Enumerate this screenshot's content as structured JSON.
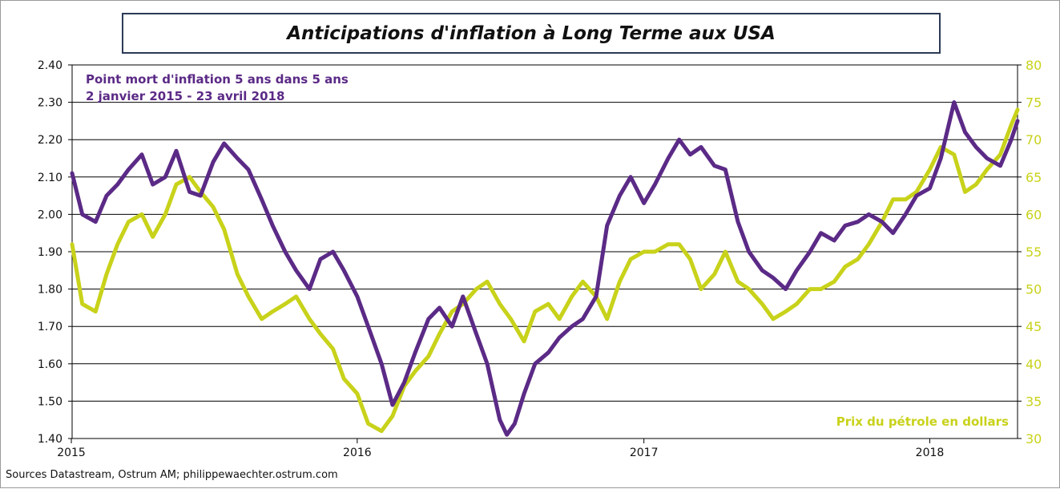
{
  "chart_data": {
    "type": "line",
    "title": "Anticipations d'inflation à Long Terme aux USA",
    "source": "Sources Datastream, Ostrum AM; philippewaechter.ostrum.com",
    "x_tick_labels": [
      "2015",
      "2016",
      "2017",
      "2018"
    ],
    "x_ticks": [
      "2015-01-01",
      "2016-01-01",
      "2017-01-01",
      "2018-01-01"
    ],
    "xlim": [
      "2015-01-02",
      "2018-04-23"
    ],
    "y_left_ticks": [
      "1.40",
      "1.50",
      "1.60",
      "1.70",
      "1.80",
      "1.90",
      "2.00",
      "2.10",
      "2.20",
      "2.30",
      "2.40"
    ],
    "y_left_lim": [
      1.4,
      2.4
    ],
    "y_right_ticks": [
      "30",
      "35",
      "40",
      "45",
      "50",
      "55",
      "60",
      "65",
      "70",
      "75",
      "80"
    ],
    "y_right_lim": [
      30,
      80
    ],
    "grid": true,
    "annotations": {
      "purple_line1": "Point mort d'inflation 5 ans dans 5 ans",
      "purple_line2": "2 janvier 2015 - 23 avril 2018",
      "yellow_label": "Prix du pétrole en dollars"
    },
    "colors": {
      "purple": "#5b2a86",
      "yellow": "#c8d21a",
      "grid": "#000000"
    },
    "series": [
      {
        "axis": "left",
        "color": "#5b2a86",
        "points": [
          [
            "2015-01-02",
            2.11
          ],
          [
            "2015-01-15",
            2.0
          ],
          [
            "2015-02-01",
            1.98
          ],
          [
            "2015-02-15",
            2.05
          ],
          [
            "2015-03-01",
            2.08
          ],
          [
            "2015-03-15",
            2.12
          ],
          [
            "2015-04-01",
            2.16
          ],
          [
            "2015-04-15",
            2.08
          ],
          [
            "2015-05-01",
            2.1
          ],
          [
            "2015-05-15",
            2.17
          ],
          [
            "2015-06-01",
            2.06
          ],
          [
            "2015-06-15",
            2.05
          ],
          [
            "2015-07-01",
            2.14
          ],
          [
            "2015-07-15",
            2.19
          ],
          [
            "2015-08-01",
            2.15
          ],
          [
            "2015-08-15",
            2.12
          ],
          [
            "2015-09-01",
            2.04
          ],
          [
            "2015-09-15",
            1.97
          ],
          [
            "2015-10-01",
            1.9
          ],
          [
            "2015-10-15",
            1.85
          ],
          [
            "2015-11-01",
            1.8
          ],
          [
            "2015-11-15",
            1.88
          ],
          [
            "2015-12-01",
            1.9
          ],
          [
            "2015-12-15",
            1.85
          ],
          [
            "2016-01-01",
            1.78
          ],
          [
            "2016-01-15",
            1.7
          ],
          [
            "2016-02-01",
            1.6
          ],
          [
            "2016-02-15",
            1.49
          ],
          [
            "2016-03-01",
            1.55
          ],
          [
            "2016-03-15",
            1.63
          ],
          [
            "2016-04-01",
            1.72
          ],
          [
            "2016-04-15",
            1.75
          ],
          [
            "2016-05-01",
            1.7
          ],
          [
            "2016-05-15",
            1.78
          ],
          [
            "2016-06-01",
            1.68
          ],
          [
            "2016-06-15",
            1.6
          ],
          [
            "2016-07-01",
            1.45
          ],
          [
            "2016-07-10",
            1.41
          ],
          [
            "2016-07-20",
            1.44
          ],
          [
            "2016-08-01",
            1.52
          ],
          [
            "2016-08-15",
            1.6
          ],
          [
            "2016-09-01",
            1.63
          ],
          [
            "2016-09-15",
            1.67
          ],
          [
            "2016-10-01",
            1.7
          ],
          [
            "2016-10-15",
            1.72
          ],
          [
            "2016-11-01",
            1.78
          ],
          [
            "2016-11-15",
            1.97
          ],
          [
            "2016-12-01",
            2.05
          ],
          [
            "2016-12-15",
            2.1
          ],
          [
            "2017-01-01",
            2.03
          ],
          [
            "2017-01-15",
            2.08
          ],
          [
            "2017-02-01",
            2.15
          ],
          [
            "2017-02-15",
            2.2
          ],
          [
            "2017-03-01",
            2.16
          ],
          [
            "2017-03-15",
            2.18
          ],
          [
            "2017-04-01",
            2.13
          ],
          [
            "2017-04-15",
            2.12
          ],
          [
            "2017-05-01",
            1.98
          ],
          [
            "2017-05-15",
            1.9
          ],
          [
            "2017-06-01",
            1.85
          ],
          [
            "2017-06-15",
            1.83
          ],
          [
            "2017-07-01",
            1.8
          ],
          [
            "2017-07-15",
            1.85
          ],
          [
            "2017-08-01",
            1.9
          ],
          [
            "2017-08-15",
            1.95
          ],
          [
            "2017-09-01",
            1.93
          ],
          [
            "2017-09-15",
            1.97
          ],
          [
            "2017-10-01",
            1.98
          ],
          [
            "2017-10-15",
            2.0
          ],
          [
            "2017-11-01",
            1.98
          ],
          [
            "2017-11-15",
            1.95
          ],
          [
            "2017-12-01",
            2.0
          ],
          [
            "2017-12-15",
            2.05
          ],
          [
            "2018-01-01",
            2.07
          ],
          [
            "2018-01-15",
            2.15
          ],
          [
            "2018-02-01",
            2.3
          ],
          [
            "2018-02-15",
            2.22
          ],
          [
            "2018-03-01",
            2.18
          ],
          [
            "2018-03-15",
            2.15
          ],
          [
            "2018-04-01",
            2.13
          ],
          [
            "2018-04-15",
            2.2
          ],
          [
            "2018-04-23",
            2.25
          ]
        ]
      },
      {
        "axis": "right",
        "color": "#c8d21a",
        "points": [
          [
            "2015-01-02",
            56
          ],
          [
            "2015-01-15",
            48
          ],
          [
            "2015-02-01",
            47
          ],
          [
            "2015-02-15",
            52
          ],
          [
            "2015-03-01",
            56
          ],
          [
            "2015-03-15",
            59
          ],
          [
            "2015-04-01",
            60
          ],
          [
            "2015-04-15",
            57
          ],
          [
            "2015-05-01",
            60
          ],
          [
            "2015-05-15",
            64
          ],
          [
            "2015-06-01",
            65
          ],
          [
            "2015-06-15",
            63
          ],
          [
            "2015-07-01",
            61
          ],
          [
            "2015-07-15",
            58
          ],
          [
            "2015-08-01",
            52
          ],
          [
            "2015-08-15",
            49
          ],
          [
            "2015-09-01",
            46
          ],
          [
            "2015-09-15",
            47
          ],
          [
            "2015-10-01",
            48
          ],
          [
            "2015-10-15",
            49
          ],
          [
            "2015-11-01",
            46
          ],
          [
            "2015-11-15",
            44
          ],
          [
            "2015-12-01",
            42
          ],
          [
            "2015-12-15",
            38
          ],
          [
            "2016-01-01",
            36
          ],
          [
            "2016-01-15",
            32
          ],
          [
            "2016-02-01",
            31
          ],
          [
            "2016-02-15",
            33
          ],
          [
            "2016-03-01",
            37
          ],
          [
            "2016-03-15",
            39
          ],
          [
            "2016-04-01",
            41
          ],
          [
            "2016-04-15",
            44
          ],
          [
            "2016-05-01",
            47
          ],
          [
            "2016-05-15",
            48
          ],
          [
            "2016-06-01",
            50
          ],
          [
            "2016-06-15",
            51
          ],
          [
            "2016-07-01",
            48
          ],
          [
            "2016-07-15",
            46
          ],
          [
            "2016-08-01",
            43
          ],
          [
            "2016-08-15",
            47
          ],
          [
            "2016-09-01",
            48
          ],
          [
            "2016-09-15",
            46
          ],
          [
            "2016-10-01",
            49
          ],
          [
            "2016-10-15",
            51
          ],
          [
            "2016-11-01",
            49
          ],
          [
            "2016-11-15",
            46
          ],
          [
            "2016-12-01",
            51
          ],
          [
            "2016-12-15",
            54
          ],
          [
            "2017-01-01",
            55
          ],
          [
            "2017-01-15",
            55
          ],
          [
            "2017-02-01",
            56
          ],
          [
            "2017-02-15",
            56
          ],
          [
            "2017-03-01",
            54
          ],
          [
            "2017-03-15",
            50
          ],
          [
            "2017-04-01",
            52
          ],
          [
            "2017-04-15",
            55
          ],
          [
            "2017-05-01",
            51
          ],
          [
            "2017-05-15",
            50
          ],
          [
            "2017-06-01",
            48
          ],
          [
            "2017-06-15",
            46
          ],
          [
            "2017-07-01",
            47
          ],
          [
            "2017-07-15",
            48
          ],
          [
            "2017-08-01",
            50
          ],
          [
            "2017-08-15",
            50
          ],
          [
            "2017-09-01",
            51
          ],
          [
            "2017-09-15",
            53
          ],
          [
            "2017-10-01",
            54
          ],
          [
            "2017-10-15",
            56
          ],
          [
            "2017-11-01",
            59
          ],
          [
            "2017-11-15",
            62
          ],
          [
            "2017-12-01",
            62
          ],
          [
            "2017-12-15",
            63
          ],
          [
            "2018-01-01",
            66
          ],
          [
            "2018-01-15",
            69
          ],
          [
            "2018-02-01",
            68
          ],
          [
            "2018-02-15",
            63
          ],
          [
            "2018-03-01",
            64
          ],
          [
            "2018-03-15",
            66
          ],
          [
            "2018-04-01",
            68
          ],
          [
            "2018-04-15",
            72
          ],
          [
            "2018-04-23",
            74
          ]
        ]
      }
    ]
  }
}
